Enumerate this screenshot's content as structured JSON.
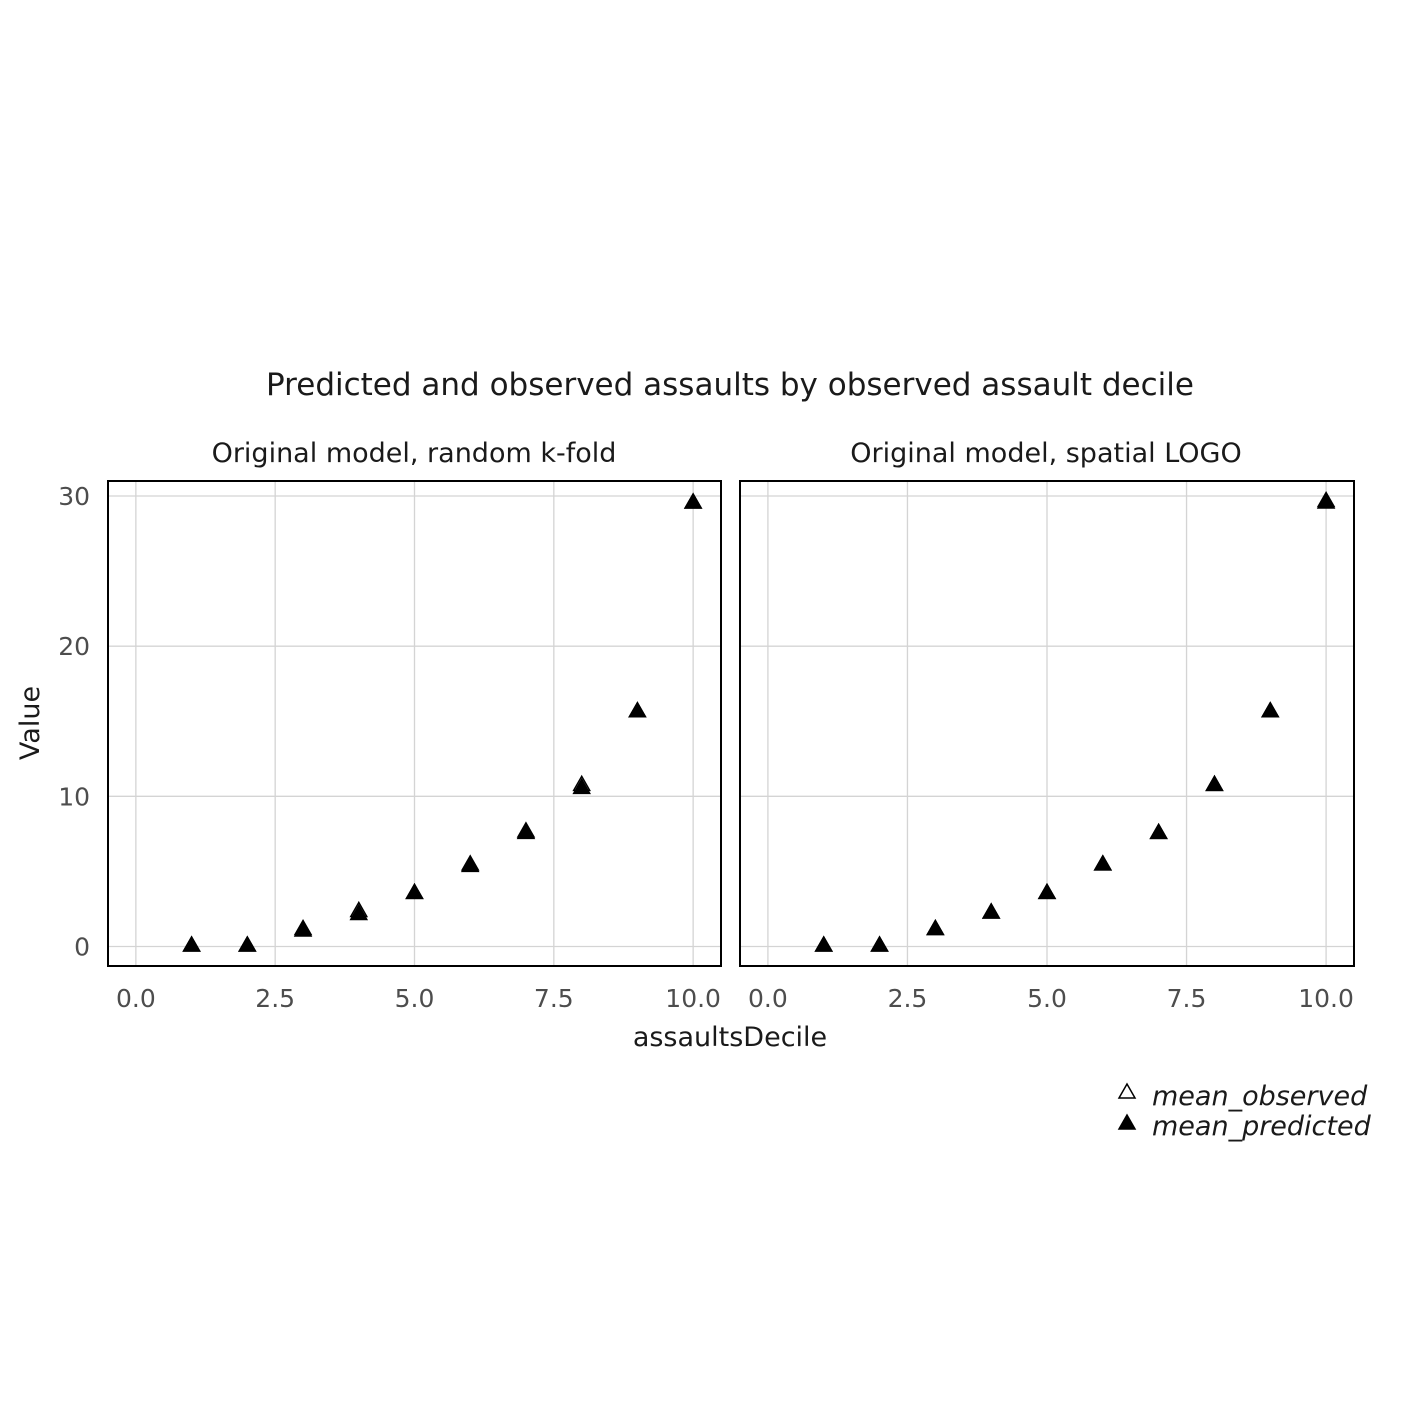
{
  "chart_data": {
    "type": "scatter",
    "title": "Predicted and observed assaults by observed assault decile",
    "xlabel": "assaultsDecile",
    "ylabel": "Value",
    "xlim": [
      -0.5,
      10.5
    ],
    "ylim": [
      -1.3,
      31
    ],
    "x_ticks": [
      0.0,
      2.5,
      5.0,
      7.5,
      10.0
    ],
    "x_tick_labels": [
      "0.0",
      "2.5",
      "5.0",
      "7.5",
      "10.0"
    ],
    "y_ticks": [
      0,
      10,
      20,
      30
    ],
    "y_tick_labels": [
      "0",
      "10",
      "20",
      "30"
    ],
    "grid": true,
    "legend_position": "bottom-right",
    "legend": [
      {
        "label": "mean_observed",
        "marker": "open-triangle"
      },
      {
        "label": "mean_predicted",
        "marker": "filled-triangle"
      }
    ],
    "panels": [
      {
        "strip": "Original model, random k-fold",
        "series": [
          {
            "name": "mean_observed",
            "x": [
              1,
              2,
              3,
              4,
              5,
              6,
              7,
              8,
              9,
              10
            ],
            "y": [
              0.1,
              0.1,
              1.2,
              2.4,
              3.6,
              5.5,
              7.7,
              10.8,
              15.7,
              29.6
            ]
          },
          {
            "name": "mean_predicted",
            "x": [
              1,
              2,
              3,
              4,
              5,
              6,
              7,
              8,
              9,
              10
            ],
            "y": [
              0.1,
              0.1,
              1.1,
              2.2,
              3.6,
              5.4,
              7.6,
              10.6,
              15.7,
              29.6
            ]
          }
        ]
      },
      {
        "strip": "Original model, spatial LOGO",
        "series": [
          {
            "name": "mean_observed",
            "x": [
              1,
              2,
              3,
              4,
              5,
              6,
              7,
              8,
              9,
              10
            ],
            "y": [
              0.1,
              0.1,
              1.2,
              2.3,
              3.6,
              5.5,
              7.6,
              10.8,
              15.7,
              29.7
            ]
          },
          {
            "name": "mean_predicted",
            "x": [
              1,
              2,
              3,
              4,
              5,
              6,
              7,
              8,
              9,
              10
            ],
            "y": [
              0.1,
              0.1,
              1.2,
              2.3,
              3.6,
              5.5,
              7.6,
              10.8,
              15.7,
              29.6
            ]
          }
        ]
      }
    ]
  }
}
